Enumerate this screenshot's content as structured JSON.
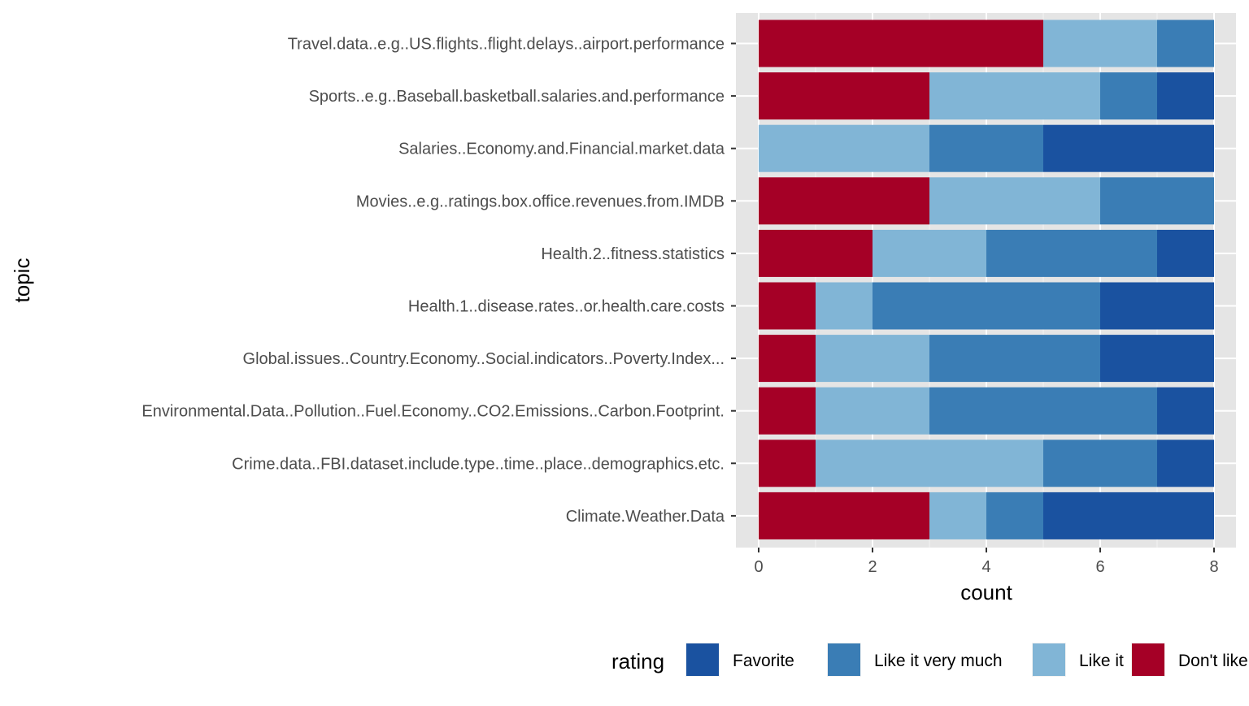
{
  "chart_data": {
    "type": "bar",
    "orientation": "horizontal",
    "stacked": true,
    "xlabel": "count",
    "ylabel": "topic",
    "xlim": [
      0,
      8
    ],
    "xticks": [
      "0",
      "2",
      "4",
      "6",
      "8"
    ],
    "grid": true,
    "legend_position": "bottom",
    "legend_title": "rating",
    "categories": [
      "Travel.data..e.g..US.flights..flight.delays..airport.performance",
      "Sports..e.g..Baseball.basketball.salaries.and.performance",
      "Salaries..Economy.and.Financial.market.data",
      "Movies..e.g..ratings.box.office.revenues.from.IMDB",
      "Health.2..fitness.statistics",
      "Health.1..disease.rates..or.health.care.costs",
      "Global.issues..Country.Economy..Social.indicators..Poverty.Index...",
      "Environmental.Data..Pollution..Fuel.Economy..CO2.Emissions..Carbon.Footprint.",
      "Crime.data..FBI.dataset.include.type..time..place..demographics.etc.",
      "Climate.Weather.Data"
    ],
    "series": [
      {
        "name": "Don't like",
        "color": "#a50026",
        "values": [
          5,
          3,
          0,
          3,
          2,
          1,
          1,
          1,
          1,
          3
        ]
      },
      {
        "name": "Like it",
        "color": "#81b5d6",
        "values": [
          2,
          3,
          3,
          3,
          2,
          1,
          2,
          2,
          4,
          1
        ]
      },
      {
        "name": "Like it very much",
        "color": "#3a7db5",
        "values": [
          1,
          1,
          2,
          2,
          3,
          4,
          3,
          4,
          2,
          1
        ]
      },
      {
        "name": "Favorite",
        "color": "#1a52a0",
        "values": [
          0,
          1,
          3,
          0,
          1,
          2,
          2,
          1,
          1,
          3
        ]
      }
    ],
    "legend_order": [
      "Favorite",
      "Like it very much",
      "Like it",
      "Don't like"
    ]
  }
}
